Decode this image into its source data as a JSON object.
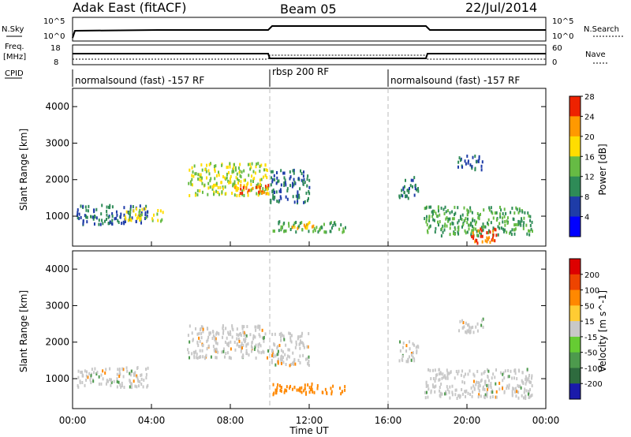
{
  "header": {
    "title": "Adak East (fitACF)",
    "beam": "Beam 05",
    "date": "22/Jul/2014"
  },
  "strip_labels": {
    "nsky": "N.Sky",
    "nsearch": "N.Search",
    "freq_line1": "Freq.",
    "freq_line2": "[MHz]",
    "nave": "Nave",
    "cpid": "CPID",
    "exp10": "10^5",
    "exp1": "10^0",
    "f18": "18",
    "f8": "8",
    "n60": "60",
    "n0": "0"
  },
  "cpid_segments": [
    {
      "label": "normalsound (fast) -157 RF",
      "start_h": 0,
      "end_h": 10
    },
    {
      "label": "rbsp 200 RF",
      "start_h": 10,
      "end_h": 16
    },
    {
      "label": "normalsound (fast) -157 RF",
      "start_h": 16,
      "end_h": 24
    }
  ],
  "chart_data": [
    {
      "type": "heatmap",
      "name": "power",
      "ylabel": "Slant Range [km]",
      "xlabel": "Time UT",
      "xlim": [
        0,
        24
      ],
      "ylim": [
        180,
        4500
      ],
      "x_ticks": [
        "00:00",
        "04:00",
        "08:00",
        "12:00",
        "16:00",
        "20:00",
        "00:00"
      ],
      "y_ticks": [
        1000,
        2000,
        3000,
        4000
      ],
      "colorbar": {
        "label": "Power [dB]",
        "ticks": [
          4,
          8,
          12,
          16,
          20,
          24,
          28
        ],
        "colors": [
          "#0000ff",
          "#1e3ca8",
          "#2e8b57",
          "#66bb44",
          "#ffdd00",
          "#ff9900",
          "#ee2200"
        ]
      },
      "blobs": [
        {
          "t0": 0.2,
          "t1": 3.8,
          "r0": 800,
          "r1": 1350,
          "level": 8
        },
        {
          "t0": 2.6,
          "t1": 4.6,
          "r0": 900,
          "r1": 1250,
          "level": 16
        },
        {
          "t0": 5.8,
          "t1": 9.9,
          "r0": 1600,
          "r1": 2500,
          "level": 16
        },
        {
          "t0": 8.2,
          "t1": 9.9,
          "r0": 1650,
          "r1": 1900,
          "level": 24
        },
        {
          "t0": 10.0,
          "t1": 13.8,
          "r0": 600,
          "r1": 900,
          "level": 12
        },
        {
          "t0": 11.0,
          "t1": 12.4,
          "r0": 700,
          "r1": 880,
          "level": 20
        },
        {
          "t0": 10.0,
          "t1": 12.0,
          "r0": 1400,
          "r1": 2300,
          "level": 8
        },
        {
          "t0": 16.5,
          "t1": 17.5,
          "r0": 1500,
          "r1": 2100,
          "level": 8
        },
        {
          "t0": 17.8,
          "t1": 23.3,
          "r0": 500,
          "r1": 1300,
          "level": 12
        },
        {
          "t0": 20.0,
          "t1": 21.5,
          "r0": 300,
          "r1": 700,
          "level": 24
        },
        {
          "t0": 19.5,
          "t1": 20.8,
          "r0": 2300,
          "r1": 2700,
          "level": 8
        }
      ]
    },
    {
      "type": "heatmap",
      "name": "velocity",
      "ylabel": "Slant Range [km]",
      "xlabel": "Time UT",
      "xlim": [
        0,
        24
      ],
      "ylim": [
        180,
        4500
      ],
      "x_ticks": [
        "00:00",
        "04:00",
        "08:00",
        "12:00",
        "16:00",
        "20:00",
        "00:00"
      ],
      "y_ticks": [
        1000,
        2000,
        3000,
        4000
      ],
      "colorbar": {
        "label": "Velocity [m s^-1]",
        "ticks": [
          200,
          100,
          50,
          15,
          -15,
          -50,
          -100,
          -200
        ],
        "colors": [
          "#1a1aaa",
          "#2e6b3e",
          "#4d9a4d",
          "#66cc33",
          "#c8c8c8",
          "#ffcc33",
          "#ff8800",
          "#ee4400",
          "#dd0000"
        ]
      },
      "blobs": [
        {
          "t0": 0.2,
          "t1": 3.8,
          "r0": 800,
          "r1": 1350,
          "level": 0
        },
        {
          "t0": 5.8,
          "t1": 9.9,
          "r0": 1600,
          "r1": 2500,
          "level": 0
        },
        {
          "t0": 10.0,
          "t1": 13.8,
          "r0": 600,
          "r1": 900,
          "level": -40
        },
        {
          "t0": 10.0,
          "t1": 12.0,
          "r0": 1400,
          "r1": 2300,
          "level": 0
        },
        {
          "t0": 16.5,
          "t1": 17.5,
          "r0": 1500,
          "r1": 2100,
          "level": 0
        },
        {
          "t0": 17.8,
          "t1": 23.3,
          "r0": 500,
          "r1": 1300,
          "level": 0
        },
        {
          "t0": 19.5,
          "t1": 20.8,
          "r0": 2300,
          "r1": 2700,
          "level": 0
        }
      ]
    }
  ]
}
